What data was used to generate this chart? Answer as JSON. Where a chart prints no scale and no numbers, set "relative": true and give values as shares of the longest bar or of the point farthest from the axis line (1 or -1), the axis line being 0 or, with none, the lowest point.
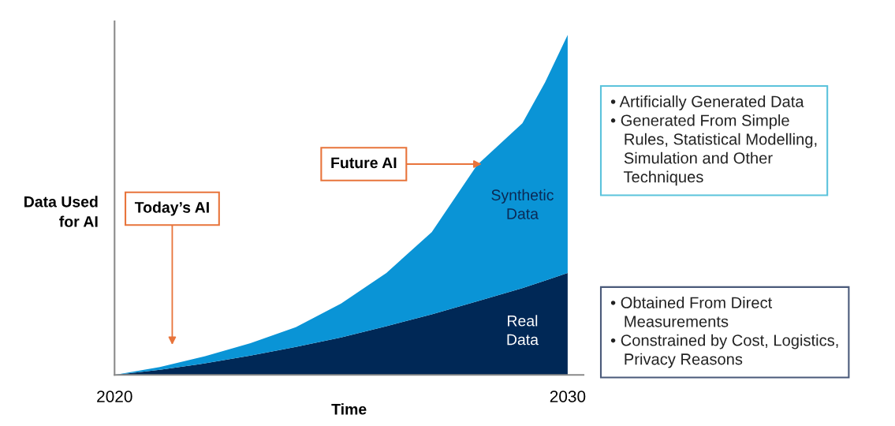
{
  "chart_data": {
    "type": "area",
    "stacked": true,
    "relative": true,
    "xlabel": "Time",
    "ylabel": "Data Used for AI",
    "x": [
      2020,
      2021,
      2022,
      2023,
      2024,
      2025,
      2026,
      2027,
      2028,
      2029,
      2029.5,
      2030
    ],
    "xlim": [
      2020,
      2030.35
    ],
    "xticks": [
      2020,
      2030
    ],
    "grid": false,
    "legend": false,
    "series": [
      {
        "name": "Real Data",
        "color": "#002856",
        "values": [
          0,
          0.015,
          0.034,
          0.057,
          0.082,
          0.11,
          0.143,
          0.178,
          0.216,
          0.255,
          0.277,
          0.3
        ]
      },
      {
        "name": "Synthetic Data",
        "color": "#0a94d6",
        "values": [
          0,
          0.008,
          0.021,
          0.036,
          0.058,
          0.1,
          0.157,
          0.242,
          0.401,
          0.485,
          0.583,
          0.7
        ]
      }
    ],
    "annotations": [
      {
        "text": "Future AI",
        "x": 2028.1,
        "y": 0.62
      },
      "Today’s AI",
      "• Artificially Generated Data\n• Generated From Simple\n   Rules, Statistical Modelling,\n   Simulation and Other\n   Techniques",
      "• Obtained From Direct\n   Measurements\n• Constrained by Cost, Logistics,\n   Privacy Reasons"
    ]
  }
}
